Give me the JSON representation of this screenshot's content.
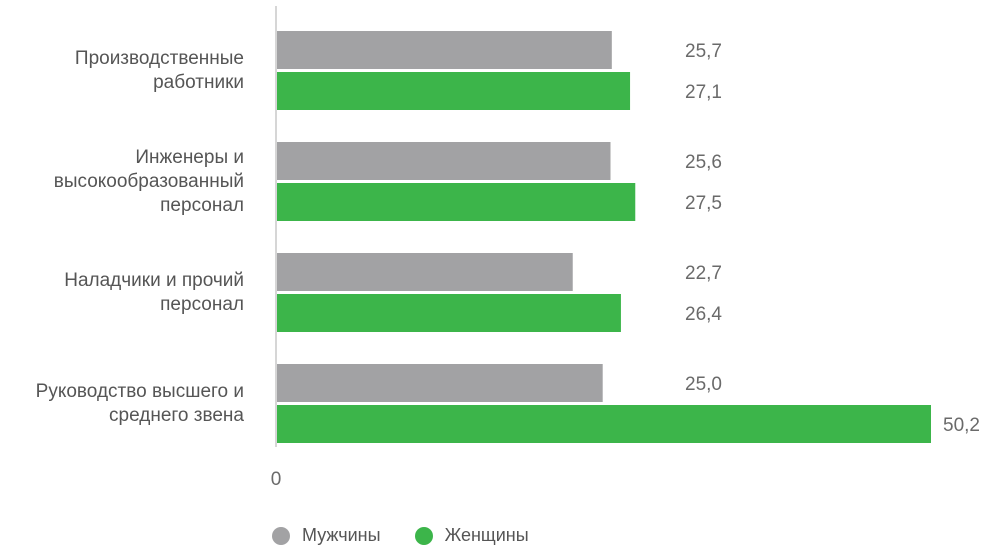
{
  "chart_data": {
    "type": "bar",
    "orientation": "horizontal",
    "categories": [
      "Производственные\nработники",
      "Инженеры и\nвысокообразованный\nперсонал",
      "Наладчики и прочий\nперсонал",
      "Руководство высшего и\nсреднего звена"
    ],
    "series": [
      {
        "name": "Мужчины",
        "values": [
          25.7,
          25.6,
          22.7,
          25.0
        ],
        "labels": [
          "25,7",
          "25,6",
          "22,7",
          "25,0"
        ],
        "color": "#a2a2a4"
      },
      {
        "name": "Женщины",
        "values": [
          27.1,
          27.5,
          26.4,
          50.2
        ],
        "labels": [
          "27,1",
          "27,5",
          "26,4",
          "50,2"
        ],
        "color": "#3cb54a"
      }
    ],
    "x_tick": "0",
    "xlim": [
      0,
      50.2
    ],
    "grid": false,
    "legend_position": "bottom"
  }
}
